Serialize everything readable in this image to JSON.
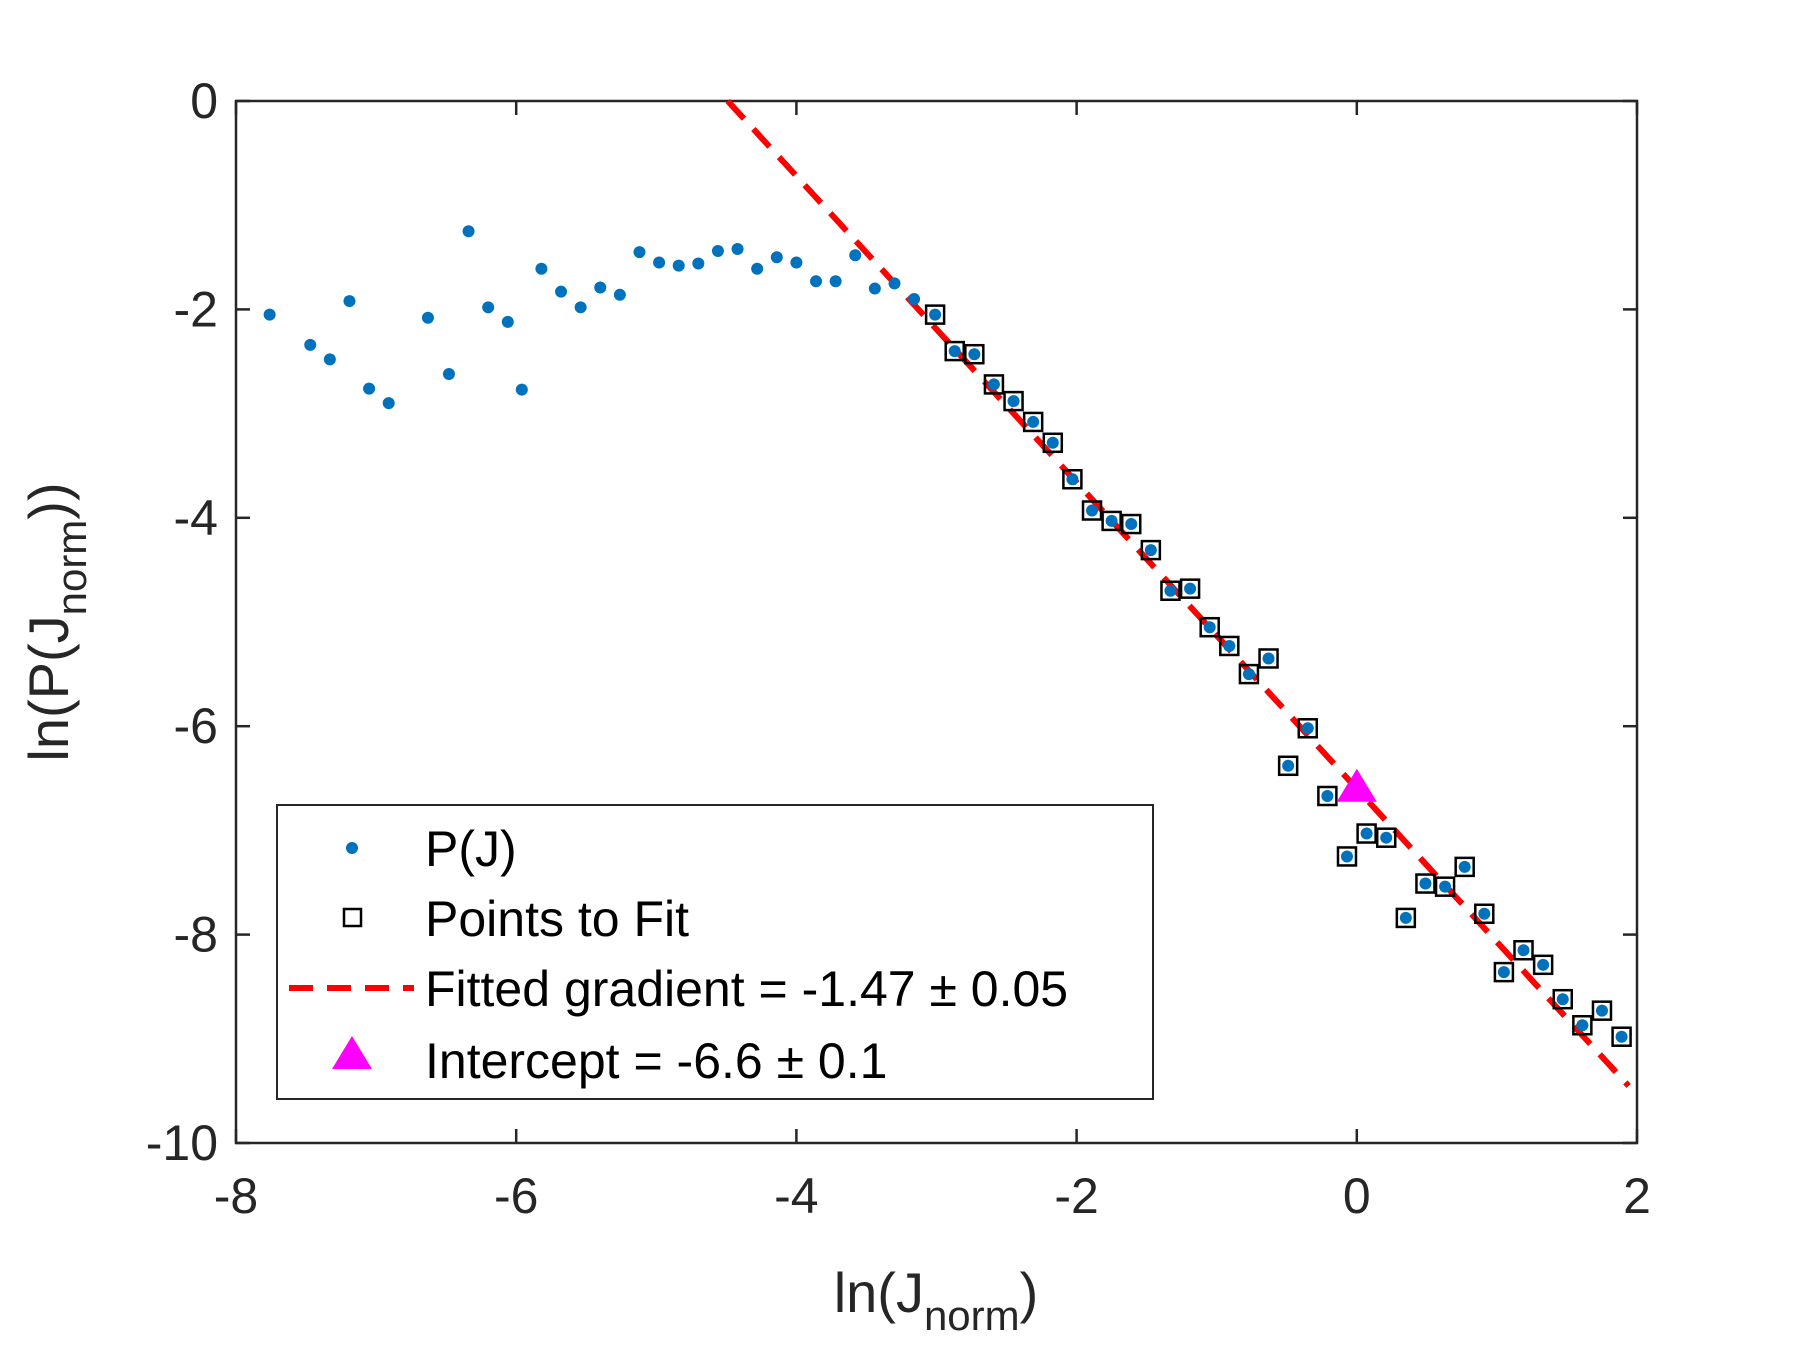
{
  "chart_data": {
    "type": "scatter",
    "title": "",
    "xlabel": {
      "prefix": "ln(J",
      "sub": "norm",
      "suffix": ")"
    },
    "ylabel": {
      "prefix": "ln(P(J",
      "sub": "norm",
      "suffix": "))"
    },
    "xlim": [
      -8,
      2
    ],
    "ylim": [
      -10,
      0
    ],
    "xticks": [
      -8,
      -6,
      -4,
      -2,
      0,
      2
    ],
    "yticks": [
      0,
      -2,
      -4,
      -6,
      -8,
      -10
    ],
    "xtick_labels": [
      "-8",
      "-6",
      "-4",
      "-2",
      "0",
      "2"
    ],
    "ytick_labels": [
      "0",
      "-2",
      "-4",
      "-6",
      "-8",
      "-10"
    ],
    "grid": false,
    "legend_position": "bottom-left",
    "colors": {
      "points": "#0072BD",
      "fit_box": "#000000",
      "fit_line": "#FF0000",
      "intercept": "#FF00FF",
      "axis": "#262626"
    },
    "series": [
      {
        "name": "P(J)",
        "kind": "points",
        "x": [
          -7.76,
          -7.47,
          -7.33,
          -7.19,
          -7.05,
          -6.91,
          -6.63,
          -6.48,
          -6.34,
          -6.2,
          -6.06,
          -5.96,
          -5.82,
          -5.68,
          -5.54,
          -5.4,
          -5.26,
          -5.12,
          -4.98,
          -4.84,
          -4.7,
          -4.56,
          -4.42,
          -4.28,
          -4.14,
          -4.0,
          -3.86,
          -3.72,
          -3.58,
          -3.44,
          -3.3,
          -3.16,
          -3.01,
          -2.87,
          -2.73,
          -2.59,
          -2.45,
          -2.31,
          -2.17,
          -2.03,
          -1.89,
          -1.75,
          -1.61,
          -1.47,
          -1.33,
          -1.19,
          -1.05,
          -0.91,
          -0.77,
          -0.63,
          -0.49,
          -0.35,
          -0.21,
          -0.07,
          0.07,
          0.21,
          0.35,
          0.49,
          0.63,
          0.77,
          0.91,
          1.05,
          1.19,
          1.33,
          1.47,
          1.61,
          1.75,
          1.89
        ],
        "y": [
          -2.05,
          -2.34,
          -2.48,
          -1.92,
          -2.76,
          -2.9,
          -2.08,
          -2.62,
          -1.25,
          -1.98,
          -2.12,
          -2.77,
          -1.61,
          -1.83,
          -1.98,
          -1.79,
          -1.86,
          -1.45,
          -1.55,
          -1.58,
          -1.56,
          -1.44,
          -1.42,
          -1.61,
          -1.5,
          -1.55,
          -1.73,
          -1.73,
          -1.48,
          -1.8,
          -1.75,
          -1.9,
          -2.05,
          -2.4,
          -2.43,
          -2.72,
          -2.88,
          -3.08,
          -3.28,
          -3.63,
          -3.93,
          -4.03,
          -4.06,
          -4.31,
          -4.7,
          -4.68,
          -5.05,
          -5.23,
          -5.5,
          -5.35,
          -6.38,
          -6.02,
          -6.67,
          -7.25,
          -7.03,
          -7.07,
          -7.84,
          -7.51,
          -7.54,
          -7.35,
          -7.8,
          -8.36,
          -8.15,
          -8.29,
          -8.62,
          -8.87,
          -8.73,
          -8.98
        ]
      },
      {
        "name": "Points to Fit",
        "kind": "boxes",
        "x": [
          -3.01,
          -2.87,
          -2.73,
          -2.59,
          -2.45,
          -2.31,
          -2.17,
          -2.03,
          -1.89,
          -1.75,
          -1.61,
          -1.47,
          -1.33,
          -1.19,
          -1.05,
          -0.91,
          -0.77,
          -0.63,
          -0.49,
          -0.35,
          -0.21,
          -0.07,
          0.07,
          0.21,
          0.35,
          0.49,
          0.63,
          0.77,
          0.91,
          1.05,
          1.19,
          1.33,
          1.47,
          1.61,
          1.75,
          1.89
        ],
        "y": [
          -2.05,
          -2.4,
          -2.43,
          -2.72,
          -2.88,
          -3.08,
          -3.28,
          -3.63,
          -3.93,
          -4.03,
          -4.06,
          -4.31,
          -4.7,
          -4.68,
          -5.05,
          -5.23,
          -5.5,
          -5.35,
          -6.38,
          -6.02,
          -6.67,
          -7.25,
          -7.03,
          -7.07,
          -7.84,
          -7.51,
          -7.54,
          -7.35,
          -7.8,
          -8.36,
          -8.15,
          -8.29,
          -8.62,
          -8.87,
          -8.73,
          -8.98
        ]
      },
      {
        "name": "Fitted gradient = -1.47 ± 0.05",
        "kind": "dashed-line",
        "slope": -1.47,
        "intercept": -6.6,
        "x_range": [
          -4.49,
          1.94
        ]
      },
      {
        "name": "Intercept = -6.6 ± 0.1",
        "kind": "triangle",
        "x": [
          0
        ],
        "y": [
          -6.6
        ]
      }
    ]
  }
}
